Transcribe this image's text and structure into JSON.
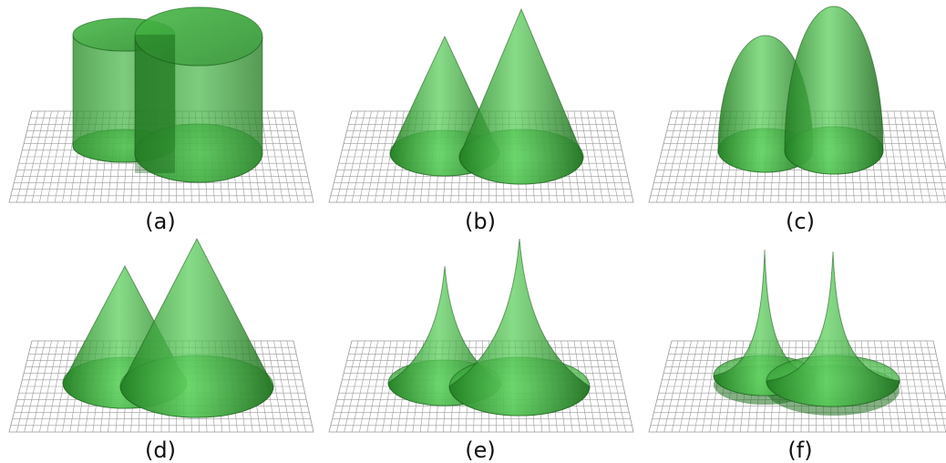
{
  "panels": [
    {
      "label": "(a)",
      "shape": "cylinders"
    },
    {
      "label": "(b)",
      "shape": "cones"
    },
    {
      "label": "(c)",
      "shape": "paraboloids"
    },
    {
      "label": "(d)",
      "shape": "cones"
    },
    {
      "label": "(e)",
      "shape": "concave-cusps"
    },
    {
      "label": "(f)",
      "shape": "sharp-cusps"
    }
  ],
  "colors": {
    "surface": "#3fae3f",
    "surface_dark": "#1d6e1d",
    "surface_light": "#8df08d",
    "grid": "#9a9a9a",
    "label": "#111111"
  }
}
